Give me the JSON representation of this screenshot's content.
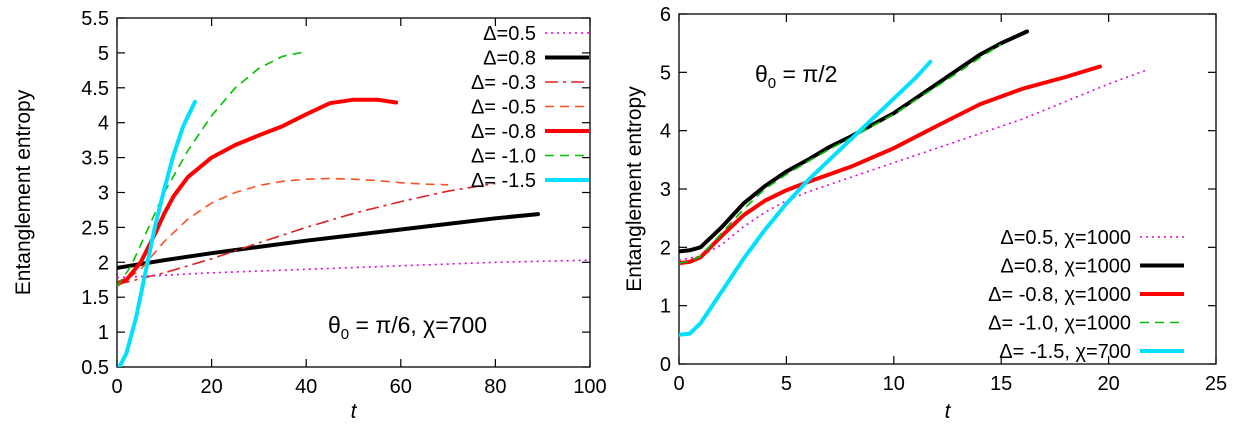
{
  "chart_data": [
    {
      "type": "line",
      "xlabel": "t",
      "ylabel": "Entanglement entropy",
      "xlim": [
        0,
        100
      ],
      "ylim": [
        0.5,
        5.5
      ],
      "xticks": [
        "0",
        "20",
        "40",
        "60",
        "80",
        "100"
      ],
      "yticks": [
        "0.5",
        "1",
        "1.5",
        "2",
        "2.5",
        "3",
        "3.5",
        "4",
        "4.5",
        "5",
        "5.5"
      ],
      "annotation": {
        "theta": "θ",
        "sub": "0",
        "rest": " = π/6, χ=700"
      },
      "legend_position": "top-right",
      "series": [
        {
          "name": "Δ=0.5",
          "color": "#e000e0",
          "style": "dotted",
          "x": [
            0,
            20,
            40,
            60,
            80,
            100
          ],
          "y": [
            1.78,
            1.85,
            1.9,
            1.95,
            2.0,
            2.03
          ]
        },
        {
          "name": "Δ=0.8",
          "color": "#000000",
          "style": "solid-thick",
          "x": [
            0,
            10,
            20,
            30,
            40,
            50,
            60,
            70,
            80,
            89
          ],
          "y": [
            1.92,
            2.03,
            2.13,
            2.22,
            2.31,
            2.39,
            2.47,
            2.55,
            2.63,
            2.69
          ]
        },
        {
          "name": "Δ= -0.3",
          "color": "#e02020",
          "style": "dashdot",
          "x": [
            0,
            10,
            20,
            30,
            40,
            50,
            60,
            70,
            80
          ],
          "y": [
            1.68,
            1.85,
            2.05,
            2.28,
            2.5,
            2.7,
            2.87,
            3.02,
            3.13
          ]
        },
        {
          "name": "Δ= -0.5",
          "color": "#ff5020",
          "style": "dashed",
          "x": [
            0,
            5,
            10,
            15,
            20,
            25,
            30,
            35,
            40,
            45,
            50,
            55,
            60,
            65,
            70
          ],
          "y": [
            1.65,
            1.9,
            2.3,
            2.62,
            2.85,
            3.0,
            3.1,
            3.16,
            3.19,
            3.2,
            3.19,
            3.17,
            3.14,
            3.12,
            3.11
          ]
        },
        {
          "name": "Δ= -0.8",
          "color": "#ff0000",
          "style": "solid-thick",
          "x": [
            0,
            2,
            5,
            8,
            10,
            12,
            15,
            20,
            25,
            30,
            35,
            40,
            45,
            50,
            55,
            59
          ],
          "y": [
            1.7,
            1.75,
            2.0,
            2.4,
            2.7,
            2.95,
            3.22,
            3.5,
            3.68,
            3.82,
            3.95,
            4.12,
            4.28,
            4.33,
            4.33,
            4.29
          ]
        },
        {
          "name": "Δ= -1.0",
          "color": "#00c000",
          "style": "dashed",
          "x": [
            0,
            3,
            6,
            10,
            15,
            20,
            25,
            30,
            35,
            40
          ],
          "y": [
            1.65,
            1.95,
            2.4,
            3.0,
            3.6,
            4.1,
            4.5,
            4.78,
            4.95,
            5.02
          ]
        },
        {
          "name": "Δ= -1.5",
          "color": "#00e0ff",
          "style": "solid-thick",
          "x": [
            0.5,
            2,
            4,
            6,
            8,
            10,
            12,
            14,
            16.5
          ],
          "y": [
            0.5,
            0.7,
            1.2,
            1.85,
            2.5,
            3.05,
            3.55,
            3.95,
            4.3
          ]
        }
      ]
    },
    {
      "type": "line",
      "xlabel": "t",
      "ylabel": "Entanglement entropy",
      "xlim": [
        0,
        25
      ],
      "ylim": [
        0,
        6
      ],
      "xticks": [
        "0",
        "5",
        "10",
        "15",
        "20",
        "25"
      ],
      "yticks": [
        "0",
        "1",
        "2",
        "3",
        "4",
        "5",
        "6"
      ],
      "annotation": {
        "theta": "θ",
        "sub": "0",
        "rest": " = π/2"
      },
      "legend_position": "bottom-right",
      "series": [
        {
          "name": "Δ=0.5, χ=1000",
          "color": "#e000e0",
          "style": "dotted",
          "x": [
            0,
            1,
            2,
            3,
            4,
            5,
            6,
            8,
            10,
            12,
            14,
            16,
            18,
            20,
            21.7
          ],
          "y": [
            1.78,
            1.85,
            2.05,
            2.35,
            2.6,
            2.8,
            2.95,
            3.2,
            3.45,
            3.7,
            3.95,
            4.2,
            4.5,
            4.8,
            5.03
          ]
        },
        {
          "name": "Δ=0.8, χ=1000",
          "color": "#000000",
          "style": "solid-thick",
          "x": [
            0,
            0.5,
            1,
            2,
            3,
            4,
            5,
            6,
            7,
            8,
            9,
            10,
            11,
            12,
            13,
            14,
            15,
            16.2
          ],
          "y": [
            1.93,
            1.95,
            2.0,
            2.35,
            2.75,
            3.05,
            3.3,
            3.5,
            3.72,
            3.9,
            4.1,
            4.3,
            4.55,
            4.8,
            5.05,
            5.3,
            5.5,
            5.7
          ]
        },
        {
          "name": "Δ= -0.8, χ=1000",
          "color": "#ff0000",
          "style": "solid-thick",
          "x": [
            0,
            0.5,
            1,
            2,
            3,
            4,
            5,
            6,
            8,
            10,
            12,
            14,
            16,
            18,
            19.6
          ],
          "y": [
            1.73,
            1.75,
            1.83,
            2.2,
            2.55,
            2.8,
            2.98,
            3.12,
            3.38,
            3.7,
            4.08,
            4.45,
            4.72,
            4.92,
            5.1
          ]
        },
        {
          "name": "Δ= -1.0, χ=1000",
          "color": "#00c000",
          "style": "dashed",
          "x": [
            0,
            0.5,
            1,
            2,
            3,
            4,
            5,
            6,
            7,
            8,
            9,
            10,
            11,
            12,
            13,
            14,
            15
          ],
          "y": [
            1.73,
            1.76,
            1.85,
            2.25,
            2.65,
            3.0,
            3.25,
            3.47,
            3.68,
            3.88,
            4.08,
            4.28,
            4.52,
            4.76,
            5.0,
            5.25,
            5.48
          ]
        },
        {
          "name": "Δ= -1.5, χ=700",
          "color": "#00e0ff",
          "style": "solid-thick",
          "x": [
            0,
            0.5,
            1,
            2,
            3,
            4,
            5,
            6,
            7,
            8,
            9,
            10,
            11,
            11.7
          ],
          "y": [
            0.5,
            0.52,
            0.7,
            1.25,
            1.8,
            2.3,
            2.75,
            3.15,
            3.5,
            3.85,
            4.2,
            4.55,
            4.9,
            5.18
          ]
        }
      ]
    }
  ]
}
